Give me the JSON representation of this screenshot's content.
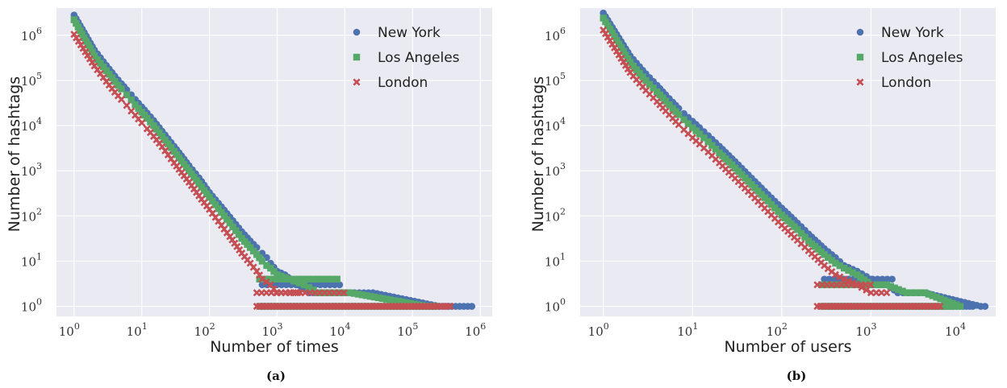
{
  "colors": {
    "background": "#eaeaf2",
    "grid": "#ffffff",
    "new_york": "#4c72b0",
    "los_angeles": "#55a868",
    "london": "#c44e52"
  },
  "legend_placement": "top-right",
  "chart_data": [
    {
      "type": "scatter",
      "caption": "(a)",
      "xlabel": "Number of times",
      "ylabel": "Number of hashtags",
      "xscale": "log",
      "yscale": "log",
      "xlim": [
        0.55,
        1500000
      ],
      "ylim": [
        0.6,
        4000000
      ],
      "xticks": [
        {
          "exp": "0"
        },
        {
          "exp": "1"
        },
        {
          "exp": "2"
        },
        {
          "exp": "3"
        },
        {
          "exp": "4"
        },
        {
          "exp": "5"
        },
        {
          "exp": "6"
        }
      ],
      "yticks": [
        {
          "exp": "0"
        },
        {
          "exp": "1"
        },
        {
          "exp": "2"
        },
        {
          "exp": "3"
        },
        {
          "exp": "4"
        },
        {
          "exp": "5"
        },
        {
          "exp": "6"
        }
      ],
      "grid": true,
      "series": [
        {
          "name": "New York",
          "marker": "circle",
          "points": [
            [
              1,
              2800000
            ],
            [
              2,
              470000
            ],
            [
              3,
              215000
            ],
            [
              4,
              125000
            ],
            [
              5,
              85000
            ],
            [
              6,
              62000
            ],
            [
              7,
              48000
            ],
            [
              8,
              38000
            ],
            [
              10,
              26000
            ],
            [
              12,
              19000
            ],
            [
              15,
              13000
            ],
            [
              20,
              7500
            ],
            [
              30,
              3500
            ],
            [
              50,
              1300
            ],
            [
              70,
              700
            ],
            [
              100,
              330
            ],
            [
              150,
              160
            ],
            [
              200,
              95
            ],
            [
              300,
              45
            ],
            [
              400,
              28
            ],
            [
              500,
              20
            ],
            [
              600,
              15
            ],
            [
              700,
              12
            ],
            [
              800,
              9
            ],
            [
              1000,
              6
            ],
            [
              1300,
              5
            ],
            [
              2000,
              3
            ],
            [
              3000,
              2
            ],
            [
              5000,
              2
            ],
            [
              8000,
              2
            ],
            [
              12000,
              2
            ],
            [
              26000,
              2
            ],
            [
              250000,
              1
            ],
            [
              750000,
              1
            ]
          ],
          "floor_range": [
            600,
            270000
          ]
        },
        {
          "name": "Los Angeles",
          "marker": "square",
          "points": [
            [
              1,
              2200000
            ],
            [
              2,
              350000
            ],
            [
              3,
              165000
            ],
            [
              4,
              95000
            ],
            [
              5,
              65000
            ],
            [
              6,
              48000
            ],
            [
              7,
              37000
            ],
            [
              8,
              29000
            ],
            [
              10,
              20000
            ],
            [
              12,
              14500
            ],
            [
              15,
              10000
            ],
            [
              20,
              5800
            ],
            [
              30,
              2700
            ],
            [
              50,
              1000
            ],
            [
              70,
              520
            ],
            [
              100,
              260
            ],
            [
              150,
              120
            ],
            [
              200,
              70
            ],
            [
              300,
              32
            ],
            [
              400,
              20
            ],
            [
              500,
              14
            ],
            [
              600,
              10
            ],
            [
              700,
              8
            ],
            [
              800,
              7
            ],
            [
              1000,
              5
            ],
            [
              1500,
              4
            ],
            [
              2500,
              3
            ],
            [
              4000,
              2
            ],
            [
              7000,
              2
            ],
            [
              12000,
              2
            ],
            [
              160000,
              1
            ],
            [
              220000,
              1
            ]
          ],
          "floor_range": [
            550,
            220000
          ]
        },
        {
          "name": "London",
          "marker": "x",
          "points": [
            [
              1,
              1050000
            ],
            [
              2,
              210000
            ],
            [
              3,
              95000
            ],
            [
              4,
              55000
            ],
            [
              5,
              38000
            ],
            [
              6,
              28000
            ],
            [
              7,
              21000
            ],
            [
              8,
              17000
            ],
            [
              10,
              11500
            ],
            [
              12,
              8500
            ],
            [
              15,
              5800
            ],
            [
              20,
              3400
            ],
            [
              30,
              1500
            ],
            [
              50,
              560
            ],
            [
              70,
              280
            ],
            [
              100,
              140
            ],
            [
              150,
              62
            ],
            [
              200,
              35
            ],
            [
              300,
              15
            ],
            [
              400,
              9
            ],
            [
              500,
              6
            ],
            [
              600,
              4
            ],
            [
              800,
              3
            ],
            [
              1000,
              2
            ],
            [
              2000,
              2
            ]
          ],
          "floor_range": [
            500,
            380000
          ]
        }
      ]
    },
    {
      "type": "scatter",
      "caption": "(b)",
      "xlabel": "Number of users",
      "ylabel": "Number of hashtags",
      "xscale": "log",
      "yscale": "log",
      "xlim": [
        0.55,
        25000
      ],
      "ylim": [
        0.6,
        4000000
      ],
      "xticks": [
        {
          "exp": "0"
        },
        {
          "exp": "1"
        },
        {
          "exp": "2"
        },
        {
          "exp": "3"
        },
        {
          "exp": "4"
        }
      ],
      "yticks": [
        {
          "exp": "0"
        },
        {
          "exp": "1"
        },
        {
          "exp": "2"
        },
        {
          "exp": "3"
        },
        {
          "exp": "4"
        },
        {
          "exp": "5"
        },
        {
          "exp": "6"
        }
      ],
      "grid": true,
      "series": [
        {
          "name": "New York",
          "marker": "circle",
          "points": [
            [
              1,
              3100000
            ],
            [
              2,
              350000
            ],
            [
              3,
              140000
            ],
            [
              4,
              78000
            ],
            [
              5,
              48000
            ],
            [
              6,
              33000
            ],
            [
              7,
              24000
            ],
            [
              8,
              18500
            ],
            [
              10,
              12500
            ],
            [
              12,
              9000
            ],
            [
              15,
              6000
            ],
            [
              20,
              3500
            ],
            [
              30,
              1600
            ],
            [
              50,
              580
            ],
            [
              70,
              300
            ],
            [
              100,
              150
            ],
            [
              150,
              70
            ],
            [
              200,
              40
            ],
            [
              300,
              19
            ],
            [
              400,
              12
            ],
            [
              500,
              8
            ],
            [
              700,
              6
            ],
            [
              1000,
              4
            ],
            [
              1500,
              3
            ],
            [
              2000,
              2
            ],
            [
              3000,
              2
            ],
            [
              4000,
              2
            ],
            [
              17000,
              1
            ],
            [
              19000,
              1
            ]
          ],
          "floor_range": [
            300,
            15000
          ]
        },
        {
          "name": "Los Angeles",
          "marker": "square",
          "points": [
            [
              1,
              2400000
            ],
            [
              2,
              250000
            ],
            [
              3,
              100000
            ],
            [
              4,
              56000
            ],
            [
              5,
              35000
            ],
            [
              6,
              24000
            ],
            [
              7,
              17500
            ],
            [
              8,
              13500
            ],
            [
              10,
              9000
            ],
            [
              12,
              6500
            ],
            [
              15,
              4400
            ],
            [
              20,
              2500
            ],
            [
              30,
              1150
            ],
            [
              50,
              420
            ],
            [
              70,
              215
            ],
            [
              100,
              105
            ],
            [
              150,
              50
            ],
            [
              200,
              28
            ],
            [
              300,
              14
            ],
            [
              400,
              9
            ],
            [
              500,
              7
            ],
            [
              700,
              5
            ],
            [
              1000,
              3
            ],
            [
              1500,
              3
            ],
            [
              2500,
              2
            ],
            [
              4000,
              2
            ],
            [
              10000,
              1
            ]
          ],
          "floor_range": [
            280,
            9000
          ]
        },
        {
          "name": "London",
          "marker": "x",
          "points": [
            [
              1,
              1300000
            ],
            [
              2,
              150000
            ],
            [
              3,
              60000
            ],
            [
              4,
              34000
            ],
            [
              5,
              21000
            ],
            [
              6,
              14500
            ],
            [
              7,
              10500
            ],
            [
              8,
              8100
            ],
            [
              10,
              5400
            ],
            [
              12,
              3900
            ],
            [
              15,
              2600
            ],
            [
              20,
              1500
            ],
            [
              30,
              680
            ],
            [
              50,
              250
            ],
            [
              70,
              125
            ],
            [
              100,
              62
            ],
            [
              150,
              29
            ],
            [
              200,
              17
            ],
            [
              300,
              8
            ],
            [
              400,
              5
            ],
            [
              500,
              4
            ],
            [
              700,
              3
            ],
            [
              1000,
              2
            ],
            [
              1500,
              2
            ]
          ],
          "floor_range": [
            250,
            6000
          ]
        }
      ]
    }
  ]
}
